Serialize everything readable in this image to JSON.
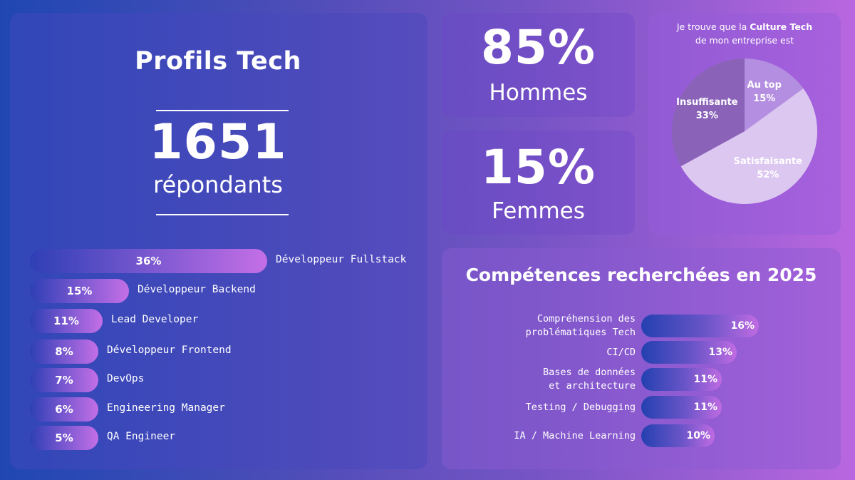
{
  "profils": {
    "title": "Profils Tech",
    "count": "1651",
    "count_label": "répondants"
  },
  "gender": {
    "men_pct": "85%",
    "men_label": "Hommes",
    "women_pct": "15%",
    "women_label": "Femmes"
  },
  "culture": {
    "question_prefix": "Je trouve que la ",
    "question_bold": "Culture Tech",
    "question_line2": "de mon entreprise est"
  },
  "chart_data": [
    {
      "type": "bar",
      "orientation": "horizontal",
      "title": "",
      "categories": [
        "Développeur Fullstack",
        "Développeur Backend",
        "Lead Developer",
        "Développeur Frontend",
        "DevOps",
        "Engineering Manager",
        "QA Engineer"
      ],
      "values": [
        36,
        15,
        11,
        8,
        7,
        6,
        5
      ],
      "value_labels": [
        "36%",
        "15%",
        "11%",
        "8%",
        "7%",
        "6%",
        "5%"
      ],
      "unit": "%"
    },
    {
      "type": "pie",
      "title": "",
      "slices": [
        {
          "label": "Au top",
          "value": 15,
          "value_label": "15%",
          "color": "#b48ee0"
        },
        {
          "label": "Satisfaisante",
          "value": 52,
          "value_label": "52%",
          "color": "#dcc7f0"
        },
        {
          "label": "Insuffisante",
          "value": 33,
          "value_label": "33%",
          "color": "#8a63b8"
        }
      ]
    },
    {
      "type": "bar",
      "orientation": "horizontal",
      "title": "Compétences recherchées en 2025",
      "categories": [
        [
          "Compréhension des",
          "problématiques Tech"
        ],
        [
          "CI/CD"
        ],
        [
          "Bases de données",
          "et architecture"
        ],
        [
          "Testing / Debugging"
        ],
        [
          "IA / Machine Learning"
        ]
      ],
      "values": [
        16,
        13,
        11,
        11,
        10
      ],
      "value_labels": [
        "16%",
        "13%",
        "11%",
        "11%",
        "10%"
      ],
      "unit": "%"
    }
  ]
}
